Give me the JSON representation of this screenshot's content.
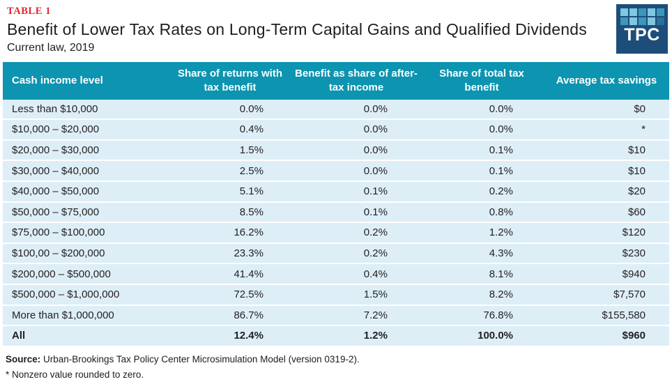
{
  "header": {
    "table_label": "TABLE 1",
    "title": "Benefit of Lower Tax Rates on Long-Term Capital Gains and Qualified Dividends",
    "subtitle": "Current law, 2019"
  },
  "logo": {
    "text": "TPC"
  },
  "chart_data": {
    "type": "table",
    "title": "Benefit of Lower Tax Rates on Long-Term Capital Gains and Qualified Dividends",
    "subtitle": "Current law, 2019",
    "columns": [
      "Cash income level",
      "Share of returns with tax benefit",
      "Benefit as share of after-tax income",
      "Share of total tax benefit",
      "Average tax savings"
    ],
    "rows": [
      [
        "Less than $10,000",
        "0.0%",
        "0.0%",
        "0.0%",
        "$0"
      ],
      [
        "$10,000 – $20,000",
        "0.4%",
        "0.0%",
        "0.0%",
        "*"
      ],
      [
        "$20,000 – $30,000",
        "1.5%",
        "0.0%",
        "0.1%",
        "$10"
      ],
      [
        "$30,000 – $40,000",
        "2.5%",
        "0.0%",
        "0.1%",
        "$10"
      ],
      [
        "$40,000 – $50,000",
        "5.1%",
        "0.1%",
        "0.2%",
        "$20"
      ],
      [
        "$50,000 – $75,000",
        "8.5%",
        "0.1%",
        "0.8%",
        "$60"
      ],
      [
        "$75,000 – $100,000",
        "16.2%",
        "0.2%",
        "1.2%",
        "$120"
      ],
      [
        "$100,00 – $200,000",
        "23.3%",
        "0.2%",
        "4.3%",
        "$230"
      ],
      [
        "$200,000 – $500,000",
        "41.4%",
        "0.4%",
        "8.1%",
        "$940"
      ],
      [
        "$500,000 – $1,000,000",
        "72.5%",
        "1.5%",
        "8.2%",
        "$7,570"
      ],
      [
        "More than $1,000,000",
        "86.7%",
        "7.2%",
        "76.8%",
        "$155,580"
      ]
    ],
    "total_row": [
      "All",
      "12.4%",
      "1.2%",
      "100.0%",
      "$960"
    ]
  },
  "footer": {
    "source_label": "Source:",
    "source_text": " Urban-Brookings Tax Policy Center Microsimulation Model (version 0319-2).",
    "note": "* Nonzero value rounded to zero."
  },
  "colors": {
    "header_teal": "#0c94b0",
    "row_light_blue": "#ddeef7",
    "label_red": "#e8222d",
    "logo_navy": "#1d4e79"
  }
}
